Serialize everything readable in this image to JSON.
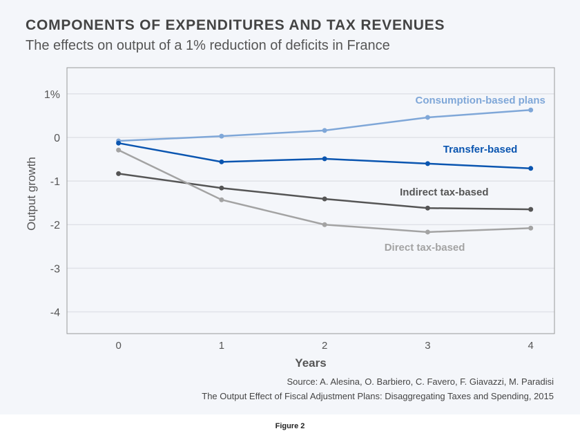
{
  "header": {
    "title": "COMPONENTS OF EXPENDITURES AND TAX REVENUES",
    "subtitle": "The effects on output of a 1% reduction of deficits in France"
  },
  "source": {
    "line1": "Source: A. Alesina, O. Barbiero, C. Favero, F. Giavazzi, M. Paradisi",
    "line2": "The Output Effect of Fiscal Adjustment Plans: Disaggregating Taxes and Spending, 2015"
  },
  "caption": "Figure 2",
  "chart_data": {
    "type": "line",
    "title": "COMPONENTS OF EXPENDITURES AND TAX REVENUES",
    "subtitle": "The effects on output of a 1% reduction of deficits in France",
    "xlabel": "Years",
    "ylabel": "Output growth",
    "x": [
      0,
      1,
      2,
      3,
      4
    ],
    "xticks": [
      "0",
      "1",
      "2",
      "3",
      "4"
    ],
    "yticks": [
      {
        "v": 1,
        "label": "1%"
      },
      {
        "v": 0,
        "label": "0"
      },
      {
        "v": -1,
        "label": "-1"
      },
      {
        "v": -2,
        "label": "-2"
      },
      {
        "v": -3,
        "label": "-3"
      },
      {
        "v": -4,
        "label": "-4"
      }
    ],
    "xlim": [
      -0.5,
      4.23
    ],
    "ylim": [
      -4.5,
      1.6
    ],
    "grid": "horizontal",
    "legend": "inline labels",
    "series": [
      {
        "name": "Consumption-based plans",
        "color": "#7fa7d8",
        "values": [
          -0.08,
          0.03,
          0.16,
          0.46,
          0.63
        ],
        "label_at": [
          2.88,
          0.78
        ]
      },
      {
        "name": "Transfer-based",
        "color": "#0a55b0",
        "values": [
          -0.13,
          -0.56,
          -0.49,
          -0.6,
          -0.71
        ],
        "label_at": [
          3.15,
          -0.35
        ]
      },
      {
        "name": "Indirect tax-based",
        "color": "#555555",
        "values": [
          -0.83,
          -1.16,
          -1.41,
          -1.62,
          -1.65
        ],
        "label_at": [
          2.73,
          -1.33
        ]
      },
      {
        "name": "Direct tax-based",
        "color": "#a3a3a3",
        "values": [
          -0.29,
          -1.43,
          -2.0,
          -2.17,
          -2.08
        ],
        "label_at": [
          2.58,
          -2.6
        ]
      }
    ]
  }
}
